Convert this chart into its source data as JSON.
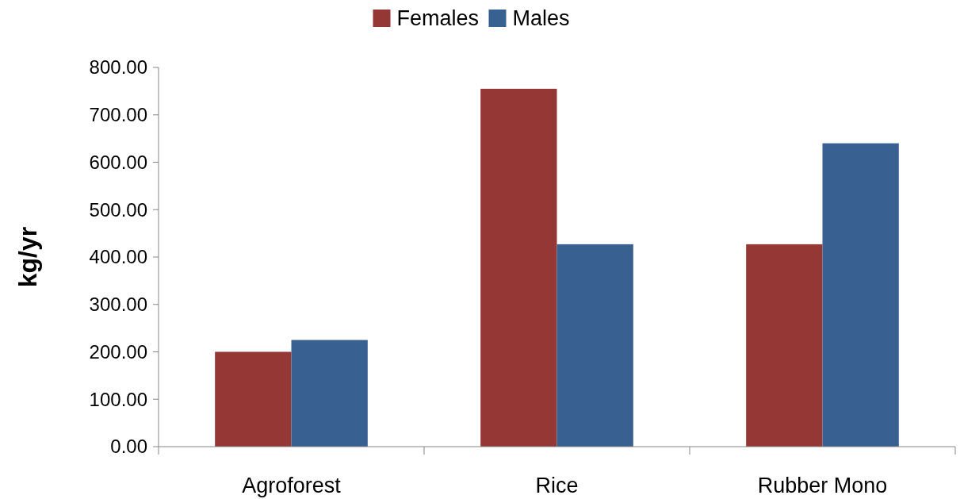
{
  "chart_data": {
    "type": "bar",
    "ylabel": "kg/yr",
    "categories": [
      "Agroforest",
      "Rice",
      "Rubber Mono"
    ],
    "series": [
      {
        "name": "Females",
        "color": "#953735",
        "values": [
          200,
          755,
          427
        ]
      },
      {
        "name": "Males",
        "color": "#386192",
        "values": [
          225,
          427,
          640
        ]
      }
    ],
    "ylim": [
      0,
      800
    ],
    "yticks": [
      {
        "value": 0,
        "label": "0.00"
      },
      {
        "value": 100,
        "label": "100.00"
      },
      {
        "value": 200,
        "label": "200.00"
      },
      {
        "value": 300,
        "label": "300.00"
      },
      {
        "value": 400,
        "label": "400.00"
      },
      {
        "value": 500,
        "label": "500.00"
      },
      {
        "value": 600,
        "label": "600.00"
      },
      {
        "value": 700,
        "label": "700.00"
      },
      {
        "value": 800,
        "label": "800.00"
      }
    ],
    "legend": "top",
    "grid": false
  }
}
